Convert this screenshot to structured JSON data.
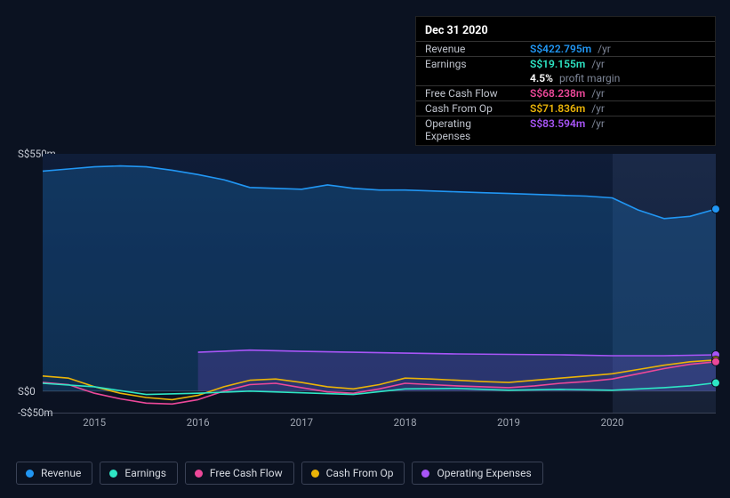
{
  "tooltip": {
    "date": "Dec 31 2020",
    "per_suffix": "/yr",
    "profit_margin": {
      "value": "4.5%",
      "label": "profit margin"
    },
    "rows": [
      {
        "key": "revenue",
        "label": "Revenue",
        "amount": "S$422.795m",
        "color": "#2196f3"
      },
      {
        "key": "earnings",
        "label": "Earnings",
        "amount": "S$19.155m",
        "color": "#2ee6c5"
      },
      {
        "key": "fcf",
        "label": "Free Cash Flow",
        "amount": "S$68.238m",
        "color": "#ec4899"
      },
      {
        "key": "cfo",
        "label": "Cash From Op",
        "amount": "S$71.836m",
        "color": "#eab308"
      },
      {
        "key": "opex",
        "label": "Operating Expenses",
        "amount": "S$83.594m",
        "color": "#a855f7"
      }
    ]
  },
  "chart": {
    "type": "area-line",
    "currency_prefix": "S$",
    "ylim": [
      -50,
      550
    ],
    "y_ticks": [
      {
        "v": 550,
        "label": "S$550m"
      },
      {
        "v": 0,
        "label": "S$0"
      },
      {
        "v": -50,
        "label": "-S$50m"
      }
    ],
    "x_years": [
      2015,
      2016,
      2017,
      2018,
      2019,
      2020
    ],
    "x_range": [
      2014.5,
      2021.0
    ],
    "hover_x": 2020.75,
    "hover_band": {
      "start": 2020.0,
      "end": 2021.0
    },
    "background_top": "#0f1d38",
    "background_bottom": "#0b1221",
    "series": [
      {
        "key": "revenue",
        "name": "Revenue",
        "color": "#2196f3",
        "fill": true,
        "fill_opacity": 0.22,
        "line_width": 1.6,
        "points": [
          [
            2014.5,
            510
          ],
          [
            2014.75,
            515
          ],
          [
            2015.0,
            520
          ],
          [
            2015.25,
            522
          ],
          [
            2015.5,
            520
          ],
          [
            2015.75,
            512
          ],
          [
            2016.0,
            502
          ],
          [
            2016.25,
            490
          ],
          [
            2016.5,
            472
          ],
          [
            2016.75,
            470
          ],
          [
            2017.0,
            468
          ],
          [
            2017.25,
            478
          ],
          [
            2017.5,
            470
          ],
          [
            2017.75,
            466
          ],
          [
            2018.0,
            466
          ],
          [
            2018.25,
            464
          ],
          [
            2018.5,
            462
          ],
          [
            2018.75,
            460
          ],
          [
            2019.0,
            458
          ],
          [
            2019.25,
            456
          ],
          [
            2019.5,
            454
          ],
          [
            2019.75,
            452
          ],
          [
            2020.0,
            448
          ],
          [
            2020.25,
            420
          ],
          [
            2020.5,
            400
          ],
          [
            2020.75,
            405
          ],
          [
            2021.0,
            422
          ]
        ]
      },
      {
        "key": "opex",
        "name": "Operating Expenses",
        "color": "#a855f7",
        "fill": true,
        "fill_opacity": 0.18,
        "line_width": 1.6,
        "start_x": 2016.0,
        "points": [
          [
            2016.0,
            90
          ],
          [
            2016.5,
            95
          ],
          [
            2017.0,
            92
          ],
          [
            2017.5,
            90
          ],
          [
            2018.0,
            88
          ],
          [
            2018.5,
            86
          ],
          [
            2019.0,
            85
          ],
          [
            2019.5,
            84
          ],
          [
            2020.0,
            82
          ],
          [
            2020.5,
            82
          ],
          [
            2020.75,
            83
          ],
          [
            2021.0,
            84
          ]
        ]
      },
      {
        "key": "cfo",
        "name": "Cash From Op",
        "color": "#eab308",
        "fill": false,
        "line_width": 1.6,
        "points": [
          [
            2014.5,
            35
          ],
          [
            2014.75,
            30
          ],
          [
            2015.0,
            10
          ],
          [
            2015.25,
            -5
          ],
          [
            2015.5,
            -15
          ],
          [
            2015.75,
            -20
          ],
          [
            2016.0,
            -10
          ],
          [
            2016.25,
            10
          ],
          [
            2016.5,
            25
          ],
          [
            2016.75,
            28
          ],
          [
            2017.0,
            20
          ],
          [
            2017.25,
            10
          ],
          [
            2017.5,
            5
          ],
          [
            2017.75,
            15
          ],
          [
            2018.0,
            30
          ],
          [
            2018.25,
            28
          ],
          [
            2018.5,
            25
          ],
          [
            2018.75,
            22
          ],
          [
            2019.0,
            20
          ],
          [
            2019.25,
            25
          ],
          [
            2019.5,
            30
          ],
          [
            2019.75,
            35
          ],
          [
            2020.0,
            40
          ],
          [
            2020.25,
            50
          ],
          [
            2020.5,
            60
          ],
          [
            2020.75,
            68
          ],
          [
            2021.0,
            72
          ]
        ]
      },
      {
        "key": "fcf",
        "name": "Free Cash Flow",
        "color": "#ec4899",
        "fill": false,
        "line_width": 1.6,
        "points": [
          [
            2014.5,
            20
          ],
          [
            2014.75,
            15
          ],
          [
            2015.0,
            -5
          ],
          [
            2015.25,
            -18
          ],
          [
            2015.5,
            -28
          ],
          [
            2015.75,
            -30
          ],
          [
            2016.0,
            -20
          ],
          [
            2016.25,
            0
          ],
          [
            2016.5,
            15
          ],
          [
            2016.75,
            18
          ],
          [
            2017.0,
            8
          ],
          [
            2017.25,
            -2
          ],
          [
            2017.5,
            -5
          ],
          [
            2017.75,
            5
          ],
          [
            2018.0,
            18
          ],
          [
            2018.25,
            15
          ],
          [
            2018.5,
            12
          ],
          [
            2018.75,
            10
          ],
          [
            2019.0,
            8
          ],
          [
            2019.25,
            12
          ],
          [
            2019.5,
            18
          ],
          [
            2019.75,
            22
          ],
          [
            2020.0,
            28
          ],
          [
            2020.25,
            40
          ],
          [
            2020.5,
            52
          ],
          [
            2020.75,
            62
          ],
          [
            2021.0,
            68
          ]
        ]
      },
      {
        "key": "earnings",
        "name": "Earnings",
        "color": "#2ee6c5",
        "fill": false,
        "line_width": 1.6,
        "points": [
          [
            2014.5,
            18
          ],
          [
            2015.0,
            10
          ],
          [
            2015.5,
            -8
          ],
          [
            2016.0,
            -5
          ],
          [
            2016.5,
            0
          ],
          [
            2017.0,
            -4
          ],
          [
            2017.5,
            -8
          ],
          [
            2018.0,
            5
          ],
          [
            2018.5,
            6
          ],
          [
            2019.0,
            2
          ],
          [
            2019.5,
            4
          ],
          [
            2020.0,
            2
          ],
          [
            2020.5,
            8
          ],
          [
            2020.75,
            12
          ],
          [
            2021.0,
            19
          ]
        ]
      }
    ],
    "markers_at_x": 2021.0
  },
  "legend": [
    {
      "key": "revenue",
      "label": "Revenue",
      "color": "#2196f3"
    },
    {
      "key": "earnings",
      "label": "Earnings",
      "color": "#2ee6c5"
    },
    {
      "key": "fcf",
      "label": "Free Cash Flow",
      "color": "#ec4899"
    },
    {
      "key": "cfo",
      "label": "Cash From Op",
      "color": "#eab308"
    },
    {
      "key": "opex",
      "label": "Operating Expenses",
      "color": "#a855f7"
    }
  ]
}
